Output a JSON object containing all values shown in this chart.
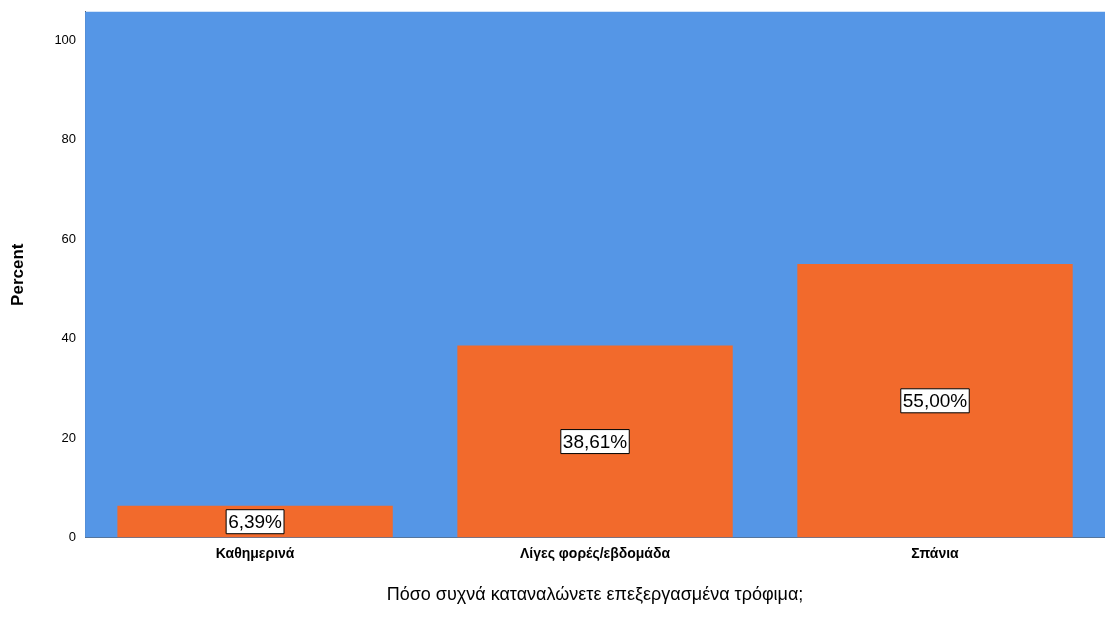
{
  "chart_data": {
    "type": "bar",
    "xlabel": "Πόσο συχνά καταναλώνετε επεξεργασμένα τρόφιμα;",
    "ylabel": "Percent",
    "categories": [
      "Καθημερινά",
      "Λίγες φορές/εβδομάδα",
      "Σπάνια"
    ],
    "values": [
      6.39,
      38.61,
      55.0
    ],
    "color": "#f26a2c",
    "value_labels": [
      "6,39%",
      "38,61%",
      "55,00%"
    ],
    "ylim": [
      0,
      105.7
    ],
    "yticks": [
      0,
      20,
      40,
      60,
      80,
      100
    ],
    "grid": false,
    "legend": false
  }
}
